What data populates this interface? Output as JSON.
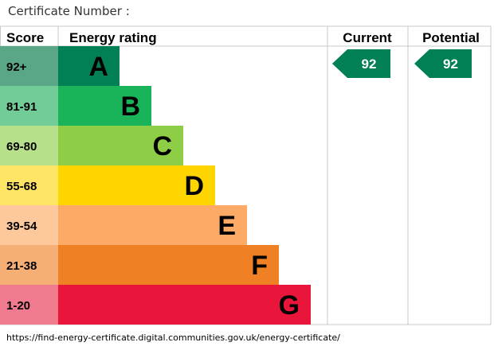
{
  "header": {
    "certificate_label": "Certificate Number :"
  },
  "columns": {
    "score": "Score",
    "energy_rating": "Energy rating",
    "current": "Current",
    "potential": "Potential"
  },
  "footer": {
    "url": "https://find-energy-certificate.digital.communities.gov.uk/energy-certificate/"
  },
  "chart_data": {
    "type": "table",
    "bands": [
      {
        "score": "92+",
        "letter": "A",
        "bar_color": "#008054",
        "score_color": "#5aa788"
      },
      {
        "score": "81-91",
        "letter": "B",
        "bar_color": "#19b459",
        "score_color": "#72cc98"
      },
      {
        "score": "69-80",
        "letter": "C",
        "bar_color": "#8dce46",
        "score_color": "#b7e08b"
      },
      {
        "score": "55-68",
        "letter": "D",
        "bar_color": "#ffd500",
        "score_color": "#ffe566"
      },
      {
        "score": "39-54",
        "letter": "E",
        "bar_color": "#fcaa65",
        "score_color": "#fdc89c"
      },
      {
        "score": "21-38",
        "letter": "F",
        "bar_color": "#ef8023",
        "score_color": "#f5ae74"
      },
      {
        "score": "1-20",
        "letter": "G",
        "bar_color": "#e9153b",
        "score_color": "#f07a8e"
      }
    ],
    "current": {
      "value": "92",
      "band": "A",
      "color": "#008054"
    },
    "potential": {
      "value": "92",
      "band": "A",
      "color": "#008054"
    }
  }
}
